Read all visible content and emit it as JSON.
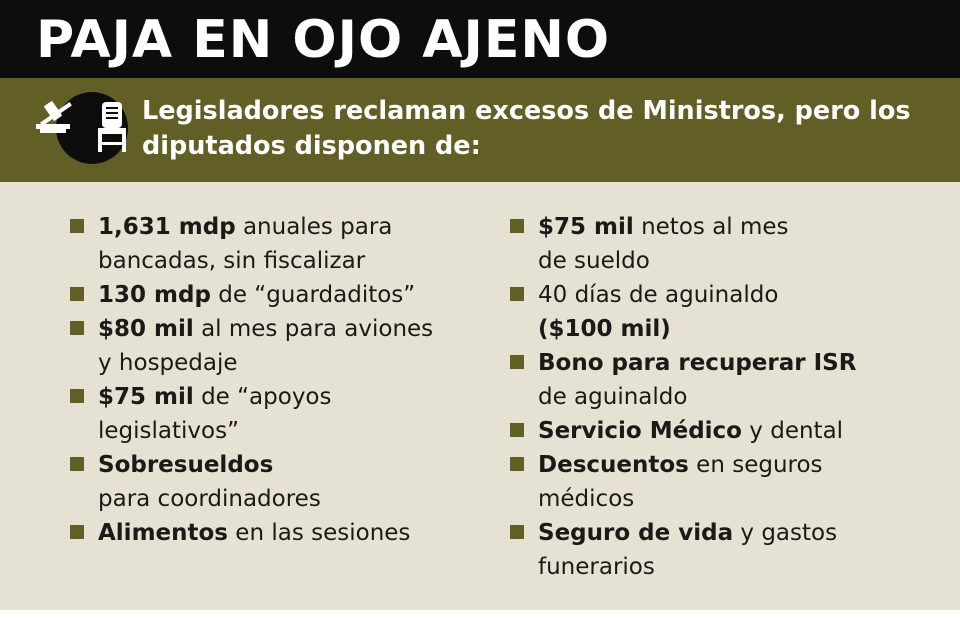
{
  "header": {
    "title": "PAJA EN OJO AJENO",
    "subtitle_line1": "Legisladores reclaman excesos de Ministros, pero los",
    "subtitle_line2": "diputados disponen de:",
    "icon": "justice-gavel-chair-icon"
  },
  "colors": {
    "title_bg": "#0d0d0b",
    "subtitle_bg": "#625f26",
    "body_bg": "#e5e1d3",
    "bullet": "#625f26"
  },
  "left_items": [
    {
      "bold": "1,631 mdp",
      "text": " anuales para",
      "line2": "bancadas, sin fiscalizar"
    },
    {
      "bold": "130 mdp",
      "text": " de “guardaditos”",
      "line2": ""
    },
    {
      "bold": "$80 mil",
      "text": " al mes para aviones",
      "line2": "y hospedaje"
    },
    {
      "bold": "$75 mil",
      "text": " de “apoyos",
      "line2": "legislativos”"
    },
    {
      "bold": "Sobresueldos",
      "text": "",
      "line2": "para coordinadores"
    },
    {
      "bold": "Alimentos",
      "text": " en las sesiones",
      "line2": ""
    }
  ],
  "right_items": [
    {
      "bold": "$75 mil",
      "text": " netos al mes",
      "line2": "de sueldo"
    },
    {
      "bold": "",
      "text": "40 días de aguinaldo",
      "line2_bold": "($100 mil)"
    },
    {
      "bold": "Bono para recuperar ISR",
      "text": "",
      "line2": "de aguinaldo"
    },
    {
      "bold": "Servicio Médico",
      "text": " y dental",
      "line2": ""
    },
    {
      "bold": "Descuentos",
      "text": " en seguros",
      "line2": "médicos"
    },
    {
      "bold": "Seguro de vida",
      "text": " y gastos",
      "line2": "funerarios"
    }
  ]
}
